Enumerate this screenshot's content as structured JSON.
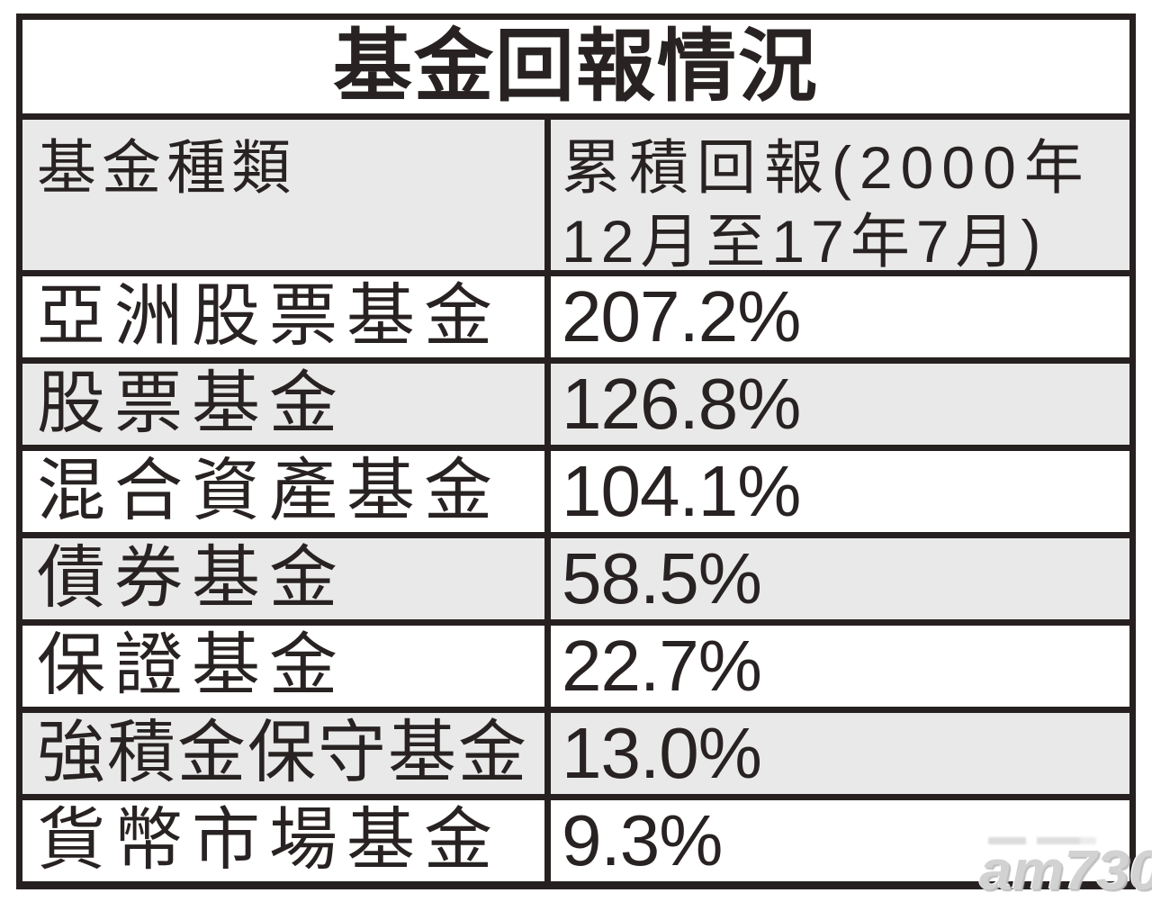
{
  "table": {
    "title": "基金回報情況",
    "header": {
      "col1": "基金種類",
      "col2_line1": "累積回報(2000年",
      "col2_line2": "12月至17年7月)"
    },
    "rows": [
      {
        "type": "亞洲股票基金",
        "return": "207.2%"
      },
      {
        "type": "股票基金",
        "return": "126.8%"
      },
      {
        "type": "混合資產基金",
        "return": "104.1%"
      },
      {
        "type": "債券基金",
        "return": "58.5%"
      },
      {
        "type": "保證基金",
        "return": "22.7%"
      },
      {
        "type": "強積金保守基金",
        "return": "13.0%"
      },
      {
        "type": "貨幣市場基金",
        "return": "9.3%"
      }
    ]
  },
  "watermark": "am730",
  "colors": {
    "border": "#262120",
    "text": "#282322",
    "row_alt_bg": "#e9e9e9",
    "row_bg": "#ffffff",
    "watermark": "#d2d2d2"
  },
  "chart_data": {
    "type": "table",
    "title": "基金回報情況",
    "columns": [
      "基金種類",
      "累積回報(2000年12月至17年7月)"
    ],
    "rows": [
      [
        "亞洲股票基金",
        "207.2%"
      ],
      [
        "股票基金",
        "126.8%"
      ],
      [
        "混合資產基金",
        "104.1%"
      ],
      [
        "債券基金",
        "58.5%"
      ],
      [
        "保證基金",
        "22.7%"
      ],
      [
        "強積金保守基金",
        "13.0%"
      ],
      [
        "貨幣市場基金",
        "9.3%"
      ]
    ],
    "categories": [
      "亞洲股票基金",
      "股票基金",
      "混合資產基金",
      "債券基金",
      "保證基金",
      "強積金保守基金",
      "貨幣市場基金"
    ],
    "values": [
      207.2,
      126.8,
      104.1,
      58.5,
      22.7,
      13.0,
      9.3
    ],
    "value_unit": "%",
    "period": "2000年12月至17年7月"
  }
}
